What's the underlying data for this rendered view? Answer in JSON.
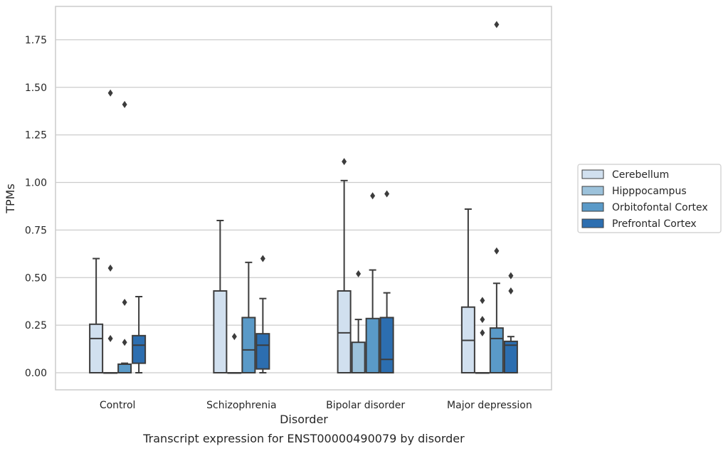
{
  "chart_data": {
    "type": "box",
    "caption": "Transcript expression for ENST00000490079 by disorder",
    "xlabel": "Disorder",
    "ylabel": "TPMs",
    "ylim": [
      -0.09,
      1.94
    ],
    "yticks": [
      0.0,
      0.25,
      0.5,
      0.75,
      1.0,
      1.25,
      1.5,
      1.75
    ],
    "ytick_labels": [
      "0.00",
      "0.25",
      "0.50",
      "0.75",
      "1.00",
      "1.25",
      "1.50",
      "1.75"
    ],
    "grid": true,
    "legend_placement": "right",
    "categories": [
      "Control",
      "Schizophrenia",
      "Bipolar disorder",
      "Major depression"
    ],
    "series": [
      {
        "name": "Cerebellum",
        "color": "#d1e0ef",
        "boxes": [
          {
            "q1": 0.0,
            "median": 0.18,
            "q3": 0.255,
            "whisker_low": 0.0,
            "whisker_high": 0.6,
            "outliers": []
          },
          {
            "q1": 0.0,
            "median": 0.0,
            "q3": 0.43,
            "whisker_low": 0.0,
            "whisker_high": 0.8,
            "outliers": []
          },
          {
            "q1": 0.0,
            "median": 0.21,
            "q3": 0.43,
            "whisker_low": 0.0,
            "whisker_high": 1.01,
            "outliers": [
              1.11
            ]
          },
          {
            "q1": 0.0,
            "median": 0.17,
            "q3": 0.345,
            "whisker_low": 0.0,
            "whisker_high": 0.86,
            "outliers": []
          }
        ]
      },
      {
        "name": "Hipppocampus",
        "color": "#9cc2db",
        "boxes": [
          {
            "q1": 0.0,
            "median": 0.0,
            "q3": 0.0,
            "whisker_low": 0.0,
            "whisker_high": 0.0,
            "outliers": [
              1.47,
              0.55,
              0.18
            ]
          },
          {
            "q1": 0.0,
            "median": 0.0,
            "q3": 0.0,
            "whisker_low": 0.0,
            "whisker_high": 0.0,
            "outliers": [
              0.19
            ]
          },
          {
            "q1": 0.0,
            "median": 0.0,
            "q3": 0.16,
            "whisker_low": 0.0,
            "whisker_high": 0.28,
            "outliers": [
              0.52
            ]
          },
          {
            "q1": 0.0,
            "median": 0.0,
            "q3": 0.0,
            "whisker_low": 0.0,
            "whisker_high": 0.0,
            "outliers": [
              0.38,
              0.28,
              0.21
            ]
          }
        ]
      },
      {
        "name": "Orbitofontal Cortex",
        "color": "#5a9ac8",
        "boxes": [
          {
            "q1": 0.0,
            "median": 0.045,
            "q3": 0.045,
            "whisker_low": 0.0,
            "whisker_high": 0.05,
            "outliers": [
              1.41,
              0.37,
              0.16
            ]
          },
          {
            "q1": 0.0,
            "median": 0.12,
            "q3": 0.29,
            "whisker_low": 0.0,
            "whisker_high": 0.58,
            "outliers": []
          },
          {
            "q1": 0.0,
            "median": 0.0,
            "q3": 0.285,
            "whisker_low": 0.0,
            "whisker_high": 0.54,
            "outliers": [
              0.93
            ]
          },
          {
            "q1": 0.0,
            "median": 0.18,
            "q3": 0.235,
            "whisker_low": 0.0,
            "whisker_high": 0.47,
            "outliers": [
              1.83,
              0.64
            ]
          }
        ]
      },
      {
        "name": "Prefrontal Cortex",
        "color": "#2c6eb0",
        "boxes": [
          {
            "q1": 0.05,
            "median": 0.145,
            "q3": 0.195,
            "whisker_low": 0.0,
            "whisker_high": 0.4,
            "outliers": []
          },
          {
            "q1": 0.02,
            "median": 0.145,
            "q3": 0.205,
            "whisker_low": 0.0,
            "whisker_high": 0.39,
            "outliers": [
              0.6
            ]
          },
          {
            "q1": 0.0,
            "median": 0.07,
            "q3": 0.29,
            "whisker_low": 0.0,
            "whisker_high": 0.42,
            "outliers": [
              0.94
            ]
          },
          {
            "q1": 0.0,
            "median": 0.145,
            "q3": 0.165,
            "whisker_low": 0.0,
            "whisker_high": 0.19,
            "outliers": [
              0.51,
              0.43
            ]
          }
        ]
      }
    ]
  }
}
